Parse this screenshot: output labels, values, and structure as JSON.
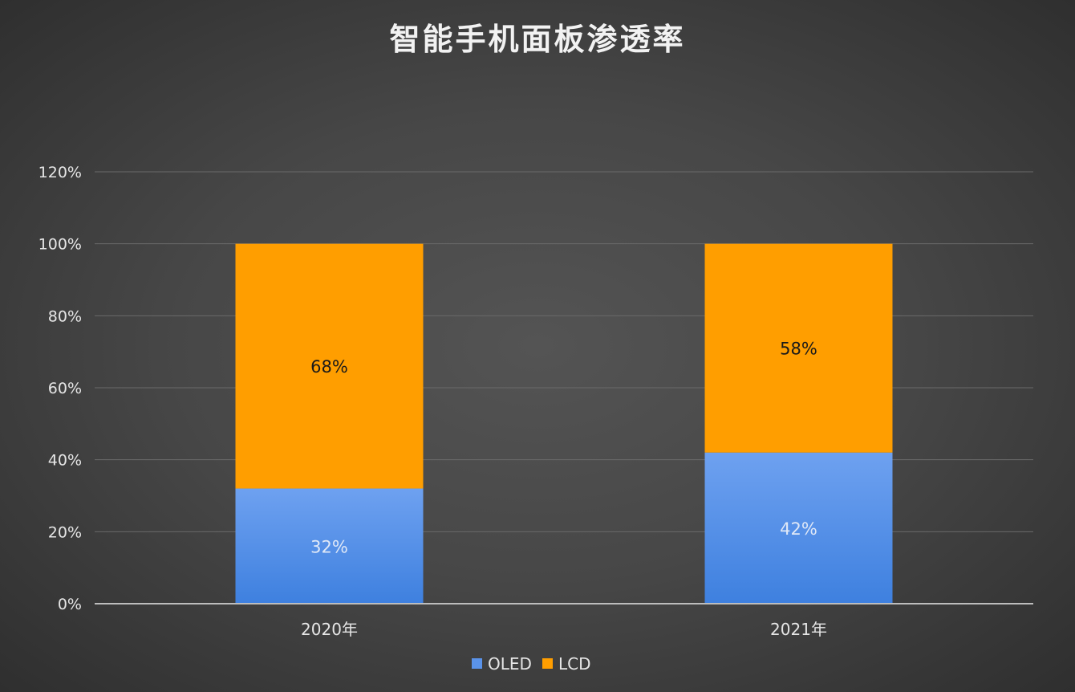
{
  "chart_data": {
    "type": "bar",
    "stacked": true,
    "title": "智能手机面板渗透率",
    "categories": [
      "2020年",
      "2021年"
    ],
    "series": [
      {
        "name": "OLED",
        "values": [
          32,
          42
        ],
        "labels": [
          "32%",
          "42%"
        ],
        "color": "#5a93ea"
      },
      {
        "name": "LCD",
        "values": [
          68,
          58
        ],
        "labels": [
          "68%",
          "58%"
        ],
        "color": "#ff9e00"
      }
    ],
    "ylim": [
      0,
      120
    ],
    "yticks": [
      0,
      20,
      40,
      60,
      80,
      100,
      120
    ],
    "ytick_labels": [
      "0%",
      "20%",
      "40%",
      "60%",
      "80%",
      "100%",
      "120%"
    ],
    "xlabel": "",
    "ylabel": "",
    "grid": true,
    "legend": "bottom-center"
  }
}
